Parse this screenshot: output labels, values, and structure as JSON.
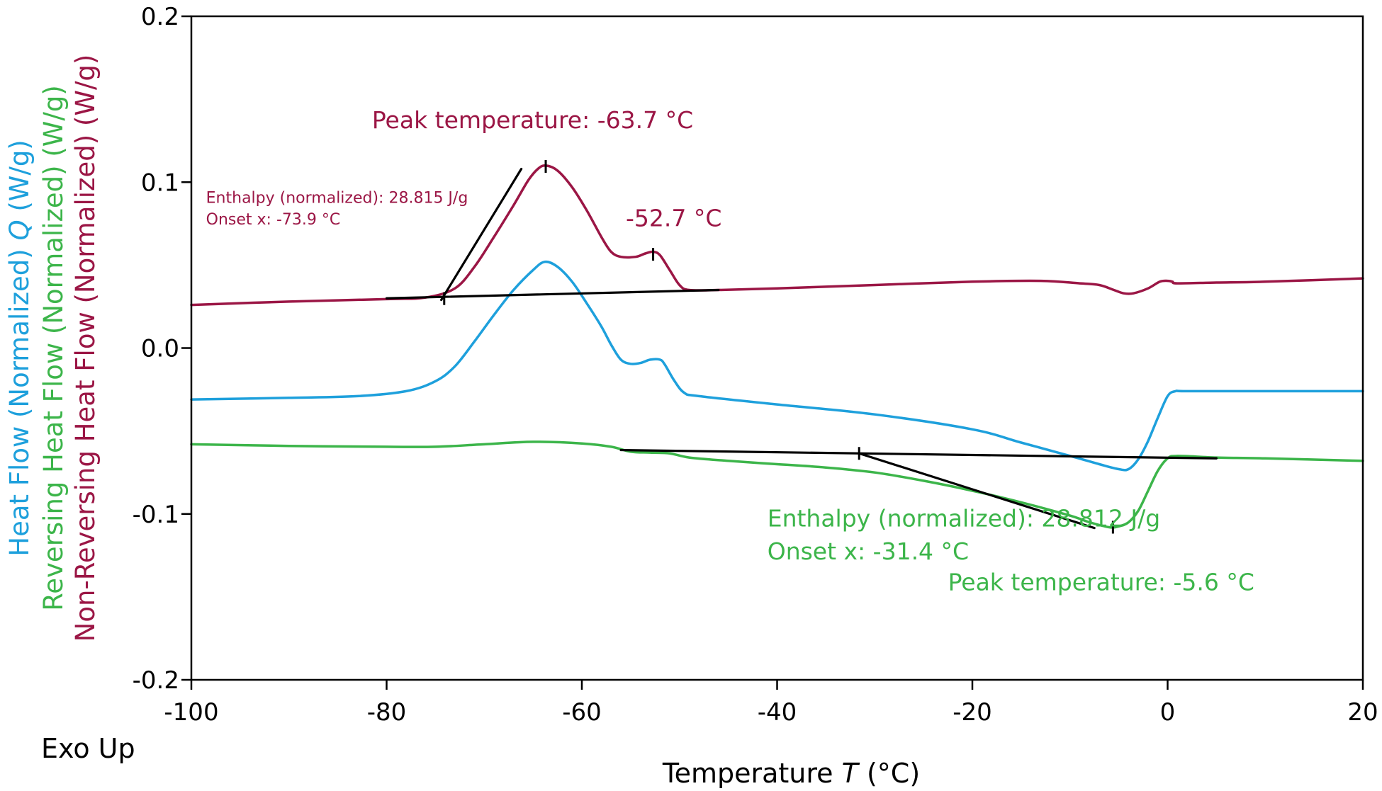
{
  "chart_data": {
    "type": "line",
    "xlabel": "Temperature",
    "xlabel_symbol": "T",
    "xlabel_unit": "(°C)",
    "xlim": [
      -100,
      20
    ],
    "ylim": [
      -0.2,
      0.2
    ],
    "x_ticks": [
      -100,
      -80,
      -60,
      -40,
      -20,
      0,
      20
    ],
    "x_tick_labels": [
      "-100",
      "-80",
      "-60",
      "-40",
      "-20",
      "0",
      "20"
    ],
    "y_ticks": [
      -0.2,
      -0.1,
      0.0,
      0.1,
      0.2
    ],
    "y_tick_labels": [
      "-0.2",
      "-0.1",
      "0.0",
      "0.1",
      "0.2"
    ],
    "grid": false,
    "exo_label": "Exo Up",
    "ylabels": [
      {
        "text": "Non-Reversing Heat Flow (Normalized) (W/g)",
        "color": "#9b1645"
      },
      {
        "text": "Reversing Heat Flow (Normalized) (W/g)",
        "color": "#3cb54a"
      },
      {
        "text_prefix": "Heat Flow (Normalized)",
        "symbol": "Q",
        "text_suffix": "(W/g)",
        "color": "#1ea0dc"
      }
    ],
    "series": [
      {
        "name": "Non-Reversing Heat Flow (Normalized)",
        "color": "#9b1645",
        "points": [
          [
            -100,
            0.026
          ],
          [
            -90,
            0.028
          ],
          [
            -80,
            0.0295
          ],
          [
            -76,
            0.0305
          ],
          [
            -73,
            0.036
          ],
          [
            -71,
            0.049
          ],
          [
            -69,
            0.067
          ],
          [
            -67,
            0.086
          ],
          [
            -65.5,
            0.101
          ],
          [
            -64.5,
            0.108
          ],
          [
            -63.7,
            0.11
          ],
          [
            -62.5,
            0.107
          ],
          [
            -61,
            0.097
          ],
          [
            -59.5,
            0.083
          ],
          [
            -58,
            0.067
          ],
          [
            -57,
            0.058
          ],
          [
            -56,
            0.055
          ],
          [
            -54.5,
            0.055
          ],
          [
            -53.5,
            0.057
          ],
          [
            -52.7,
            0.058
          ],
          [
            -52,
            0.056
          ],
          [
            -51,
            0.047
          ],
          [
            -50,
            0.038
          ],
          [
            -49,
            0.035
          ],
          [
            -46,
            0.035
          ],
          [
            -40,
            0.036
          ],
          [
            -30,
            0.038
          ],
          [
            -20,
            0.04
          ],
          [
            -13,
            0.0405
          ],
          [
            -9,
            0.039
          ],
          [
            -7,
            0.038
          ],
          [
            -5.5,
            0.035
          ],
          [
            -4.5,
            0.033
          ],
          [
            -3.5,
            0.033
          ],
          [
            -2,
            0.036
          ],
          [
            -0.8,
            0.04
          ],
          [
            0,
            0.0405
          ],
          [
            0.5,
            0.04
          ],
          [
            1,
            0.039
          ],
          [
            5,
            0.0395
          ],
          [
            10,
            0.04
          ],
          [
            20,
            0.042
          ]
        ]
      },
      {
        "name": "Heat Flow (Normalized)",
        "color": "#1ea0dc",
        "points": [
          [
            -100,
            -0.031
          ],
          [
            -90,
            -0.03
          ],
          [
            -83,
            -0.029
          ],
          [
            -78,
            -0.026
          ],
          [
            -75,
            -0.02
          ],
          [
            -73,
            -0.011
          ],
          [
            -71,
            0.004
          ],
          [
            -69,
            0.02
          ],
          [
            -67,
            0.035
          ],
          [
            -65,
            0.047
          ],
          [
            -63.8,
            0.052
          ],
          [
            -62.5,
            0.049
          ],
          [
            -61,
            0.04
          ],
          [
            -59.5,
            0.027
          ],
          [
            -58,
            0.013
          ],
          [
            -57,
            0.002
          ],
          [
            -56,
            -0.007
          ],
          [
            -55,
            -0.0095
          ],
          [
            -54,
            -0.009
          ],
          [
            -53,
            -0.007
          ],
          [
            -52,
            -0.007
          ],
          [
            -51.5,
            -0.01
          ],
          [
            -50.5,
            -0.02
          ],
          [
            -49.5,
            -0.027
          ],
          [
            -48,
            -0.029
          ],
          [
            -40,
            -0.034
          ],
          [
            -30,
            -0.04
          ],
          [
            -20,
            -0.049
          ],
          [
            -15,
            -0.057
          ],
          [
            -10,
            -0.065
          ],
          [
            -7,
            -0.07
          ],
          [
            -5,
            -0.073
          ],
          [
            -4,
            -0.073
          ],
          [
            -3,
            -0.067
          ],
          [
            -2,
            -0.056
          ],
          [
            -1,
            -0.042
          ],
          [
            0,
            -0.029
          ],
          [
            0.8,
            -0.026
          ],
          [
            2,
            -0.026
          ],
          [
            10,
            -0.026
          ],
          [
            20,
            -0.026
          ]
        ]
      },
      {
        "name": "Reversing Heat Flow (Normalized)",
        "color": "#3cb54a",
        "points": [
          [
            -100,
            -0.058
          ],
          [
            -90,
            -0.059
          ],
          [
            -80,
            -0.0595
          ],
          [
            -75,
            -0.0595
          ],
          [
            -70,
            -0.058
          ],
          [
            -65,
            -0.0565
          ],
          [
            -60,
            -0.0575
          ],
          [
            -57,
            -0.0595
          ],
          [
            -55,
            -0.0625
          ],
          [
            -53,
            -0.063
          ],
          [
            -51,
            -0.0635
          ],
          [
            -49,
            -0.066
          ],
          [
            -45,
            -0.068
          ],
          [
            -40,
            -0.07
          ],
          [
            -35,
            -0.072
          ],
          [
            -30,
            -0.075
          ],
          [
            -25,
            -0.08
          ],
          [
            -20,
            -0.086
          ],
          [
            -15,
            -0.093
          ],
          [
            -10,
            -0.101
          ],
          [
            -8,
            -0.105
          ],
          [
            -6,
            -0.108
          ],
          [
            -5,
            -0.1075
          ],
          [
            -4,
            -0.105
          ],
          [
            -3,
            -0.098
          ],
          [
            -2,
            -0.086
          ],
          [
            -1,
            -0.074
          ],
          [
            0,
            -0.0665
          ],
          [
            1,
            -0.065
          ],
          [
            5,
            -0.066
          ],
          [
            10,
            -0.0665
          ],
          [
            20,
            -0.068
          ]
        ]
      }
    ],
    "constructions": [
      {
        "color": "#000000",
        "points": [
          [
            -80,
            0.03
          ],
          [
            -46,
            0.035
          ]
        ]
      },
      {
        "color": "#000000",
        "points": [
          [
            -66.2,
            0.108
          ],
          [
            -74.4,
            0.029
          ]
        ]
      },
      {
        "color": "#000000",
        "points": [
          [
            -56,
            -0.0615
          ],
          [
            5,
            -0.0665
          ]
        ]
      },
      {
        "color": "#000000",
        "points": [
          [
            -31.6,
            -0.0635
          ],
          [
            -7.5,
            -0.1085
          ]
        ]
      }
    ],
    "markers": [
      {
        "x": -63.7,
        "y": 0.1095
      },
      {
        "x": -52.7,
        "y": 0.0565
      },
      {
        "x": -74.1,
        "y": 0.0298
      },
      {
        "x": -31.6,
        "y": -0.0635
      },
      {
        "x": -5.6,
        "y": -0.108
      }
    ],
    "annotations": [
      {
        "text": "Peak temperature: -63.7 °C",
        "color": "#9b1645",
        "x": -81.5,
        "y": 0.1325,
        "size": "large"
      },
      {
        "text": "Enthalpy (normalized): 28.815 J/g",
        "color": "#9b1645",
        "x": -98.5,
        "y": 0.0875,
        "size": "small"
      },
      {
        "text": "Onset x: -73.9 °C",
        "color": "#9b1645",
        "x": -98.5,
        "y": 0.0745,
        "size": "small"
      },
      {
        "text": "-52.7 °C",
        "color": "#9b1645",
        "x": -55.5,
        "y": 0.0735,
        "size": "large"
      },
      {
        "text": "Enthalpy (normalized): 28.812 J/g",
        "color": "#3cb54a",
        "x": -41.0,
        "y": -0.1075,
        "size": "large"
      },
      {
        "text": "Onset x: -31.4 °C",
        "color": "#3cb54a",
        "x": -41.0,
        "y": -0.1275,
        "size": "large"
      },
      {
        "text": "Peak temperature: -5.6 °C",
        "color": "#3cb54a",
        "x": -22.5,
        "y": -0.146,
        "size": "large"
      }
    ]
  }
}
